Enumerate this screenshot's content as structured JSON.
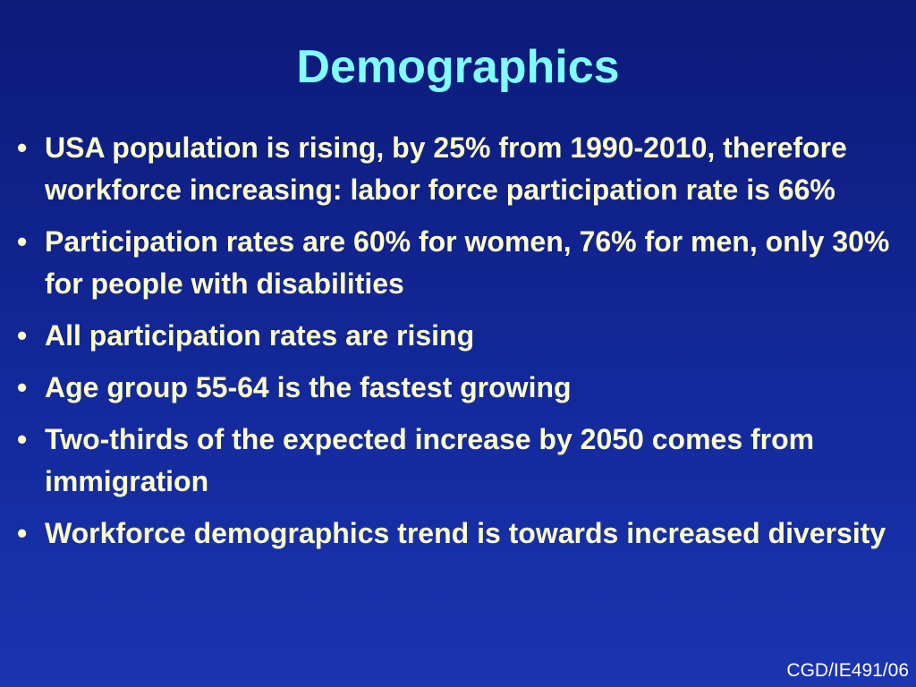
{
  "slide": {
    "title": "Demographics",
    "bullets": [
      "USA population is rising, by 25% from 1990-2010, therefore workforce increasing: labor force participation rate is 66%",
      "Participation rates are 60% for women, 76% for men, only 30% for people with disabilities",
      "All participation rates are rising",
      "Age group 55-64 is the fastest growing",
      "Two-thirds of the expected increase by 2050 comes from immigration",
      "Workforce demographics trend is towards increased diversity"
    ],
    "footer": "CGD/IE491/06"
  }
}
